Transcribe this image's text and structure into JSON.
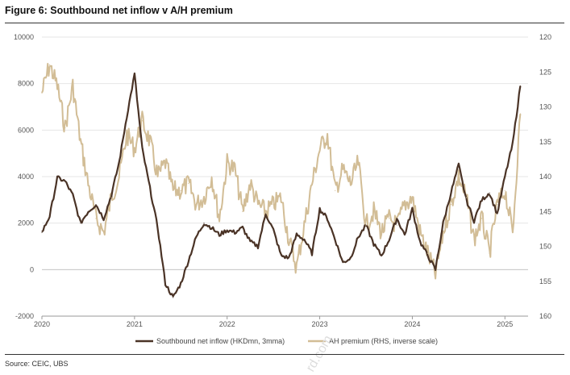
{
  "title": "Figure 6: Southbound net inflow v A/H premium",
  "source": "Source: CEIC, UBS",
  "colors": {
    "inflow": "#4a3326",
    "premium": "#d2bd96",
    "grid": "#e6e6e6"
  },
  "chart_data": {
    "type": "line",
    "title": "Figure 6: Southbound net inflow v A/H premium",
    "x_range": [
      "2020-01",
      "2025-03"
    ],
    "x_ticks": [
      "2020",
      "2021",
      "2022",
      "2023",
      "2024",
      "2025"
    ],
    "y_left": {
      "range": [
        -2000,
        10000
      ],
      "ticks": [
        "10000",
        "8000",
        "6000",
        "4000",
        "2000",
        "0",
        "-2000"
      ]
    },
    "y_right": {
      "range": [
        120,
        160
      ],
      "inverted": true,
      "ticks": [
        "120",
        "125",
        "130",
        "135",
        "140",
        "145",
        "150",
        "155",
        "160"
      ]
    },
    "grid": "horizontal",
    "legend_position": "bottom",
    "series": [
      {
        "name": "Southbound net inflow (HKDmn, 3mma)",
        "axis": "left",
        "x": [
          "2020-01",
          "2020-02",
          "2020-03",
          "2020-04",
          "2020-05",
          "2020-06",
          "2020-07",
          "2020-08",
          "2020-09",
          "2020-10",
          "2020-11",
          "2020-12",
          "2021-01",
          "2021-02",
          "2021-03",
          "2021-04",
          "2021-05",
          "2021-06",
          "2021-07",
          "2021-08",
          "2021-09",
          "2021-10",
          "2021-11",
          "2021-12",
          "2022-01",
          "2022-02",
          "2022-03",
          "2022-04",
          "2022-05",
          "2022-06",
          "2022-07",
          "2022-08",
          "2022-09",
          "2022-10",
          "2022-11",
          "2022-12",
          "2023-01",
          "2023-02",
          "2023-03",
          "2023-04",
          "2023-05",
          "2023-06",
          "2023-07",
          "2023-08",
          "2023-09",
          "2023-10",
          "2023-11",
          "2023-12",
          "2024-01",
          "2024-02",
          "2024-03",
          "2024-04",
          "2024-05",
          "2024-06",
          "2024-07",
          "2024-08",
          "2024-09",
          "2024-10",
          "2024-11",
          "2024-12",
          "2025-01",
          "2025-02",
          "2025-03"
        ],
        "values": [
          1600,
          2300,
          3950,
          3800,
          3200,
          2000,
          2500,
          2800,
          2200,
          3200,
          4600,
          6600,
          8400,
          5200,
          3500,
          1800,
          -600,
          -1200,
          -600,
          400,
          1400,
          2000,
          1800,
          1500,
          1700,
          1600,
          1800,
          1200,
          1000,
          2400,
          1700,
          600,
          500,
          1500,
          1300,
          700,
          2600,
          2200,
          1300,
          300,
          500,
          1400,
          1900,
          1100,
          600,
          1300,
          2200,
          1500,
          2600,
          1200,
          600,
          0,
          2000,
          3300,
          4500,
          3000,
          2100,
          3000,
          3300,
          2400,
          4000,
          5400,
          7900
        ]
      },
      {
        "name": "AH premium (RHS, inverse scale)",
        "axis": "right",
        "x": [
          "2020-01",
          "2020-02",
          "2020-03",
          "2020-04",
          "2020-05",
          "2020-06",
          "2020-07",
          "2020-08",
          "2020-09",
          "2020-10",
          "2020-11",
          "2020-12",
          "2021-01",
          "2021-02",
          "2021-03",
          "2021-04",
          "2021-05",
          "2021-06",
          "2021-07",
          "2021-08",
          "2021-09",
          "2021-10",
          "2021-11",
          "2021-12",
          "2022-01",
          "2022-02",
          "2022-03",
          "2022-04",
          "2022-05",
          "2022-06",
          "2022-07",
          "2022-08",
          "2022-09",
          "2022-10",
          "2022-11",
          "2022-12",
          "2023-01",
          "2023-02",
          "2023-03",
          "2023-04",
          "2023-05",
          "2023-06",
          "2023-07",
          "2023-08",
          "2023-09",
          "2023-10",
          "2023-11",
          "2023-12",
          "2024-01",
          "2024-02",
          "2024-03",
          "2024-04",
          "2024-05",
          "2024-06",
          "2024-07",
          "2024-08",
          "2024-09",
          "2024-10",
          "2024-11",
          "2024-12",
          "2025-01",
          "2025-02",
          "2025-03"
        ],
        "values": [
          128,
          124,
          127,
          133,
          127,
          135,
          141,
          146,
          148,
          143,
          140,
          134,
          136,
          132,
          135,
          140,
          138,
          142,
          142,
          141,
          144,
          143,
          140,
          146,
          138,
          139,
          145,
          141,
          144,
          145,
          144,
          143,
          149,
          153,
          147,
          141,
          136,
          134,
          142,
          139,
          141,
          138,
          147,
          145,
          148,
          146,
          147,
          144,
          143,
          148,
          151,
          154,
          148,
          144,
          140,
          143,
          149,
          146,
          151,
          144,
          142,
          148,
          131
        ]
      }
    ]
  },
  "legend": {
    "inflow_label": "Southbound net inflow (HKDmn, 3mma)",
    "premium_label": "AH premium (RHS, inverse scale)"
  },
  "watermark": "rd.com"
}
